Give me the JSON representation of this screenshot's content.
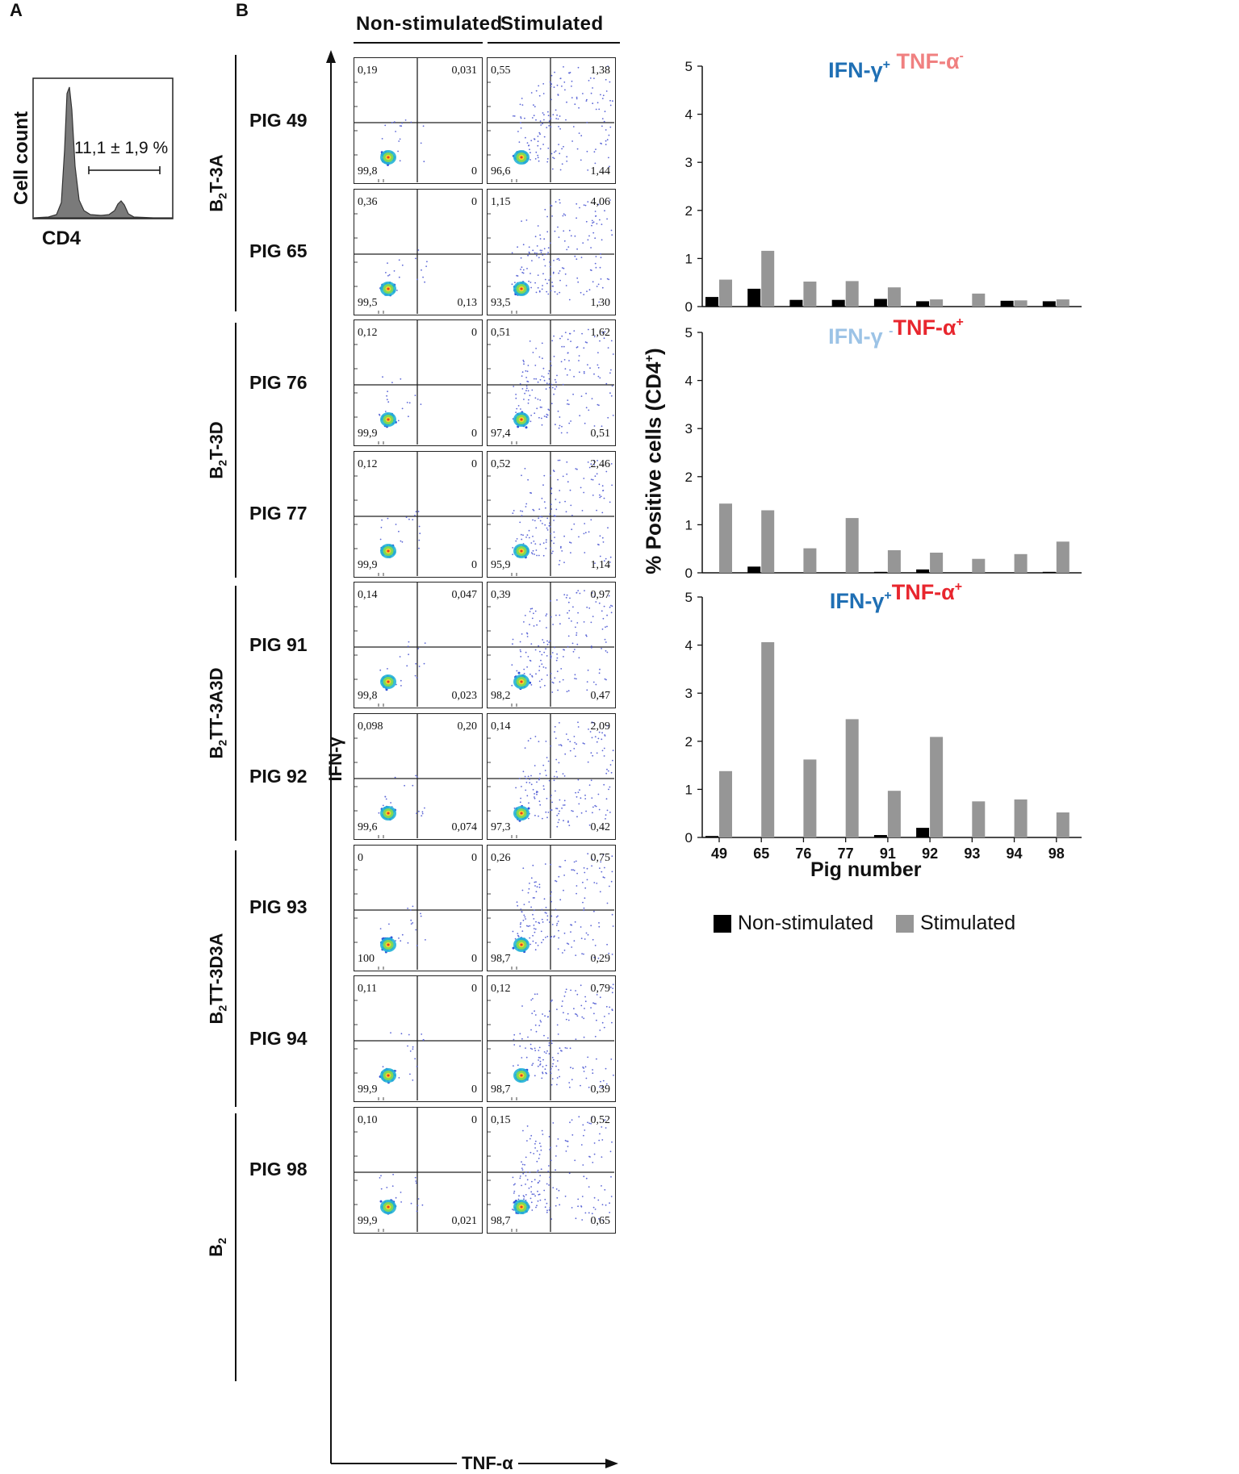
{
  "panel_a": {
    "letter": "A",
    "ylabel": "Cell count",
    "xlabel": "CD4",
    "gate_label": "11,1 ± 1,9 %"
  },
  "panel_b": {
    "letter": "B",
    "col_nonstim": "Non-stimulated",
    "col_stim": "Stimulated",
    "axis_y": "IFN-γ",
    "axis_x": "TNF-α",
    "groups": [
      {
        "pre": "B",
        "sub": "2",
        "post": "T-3A"
      },
      {
        "pre": "B",
        "sub": "2",
        "post": "T-3D"
      },
      {
        "pre": "B",
        "sub": "2",
        "post": "TT-3A3D"
      },
      {
        "pre": "B",
        "sub": "2",
        "post": "TT-3D3A"
      },
      {
        "pre": "B",
        "sub": "2",
        "post": ""
      }
    ],
    "pigs": [
      {
        "label": "PIG 49",
        "ns": [
          "0,19",
          "0,031",
          "99,8",
          "0"
        ],
        "st": [
          "0,55",
          "1,38",
          "96,6",
          "1,44"
        ]
      },
      {
        "label": "PIG 65",
        "ns": [
          "0,36",
          "0",
          "99,5",
          "0,13"
        ],
        "st": [
          "1,15",
          "4,06",
          "93,5",
          "1,30"
        ]
      },
      {
        "label": "PIG 76",
        "ns": [
          "0,12",
          "0",
          "99,9",
          "0"
        ],
        "st": [
          "0,51",
          "1,62",
          "97,4",
          "0,51"
        ]
      },
      {
        "label": "PIG 77",
        "ns": [
          "0,12",
          "0",
          "99,9",
          "0"
        ],
        "st": [
          "0,52",
          "2,46",
          "95,9",
          "1,14"
        ]
      },
      {
        "label": "PIG 91",
        "ns": [
          "0,14",
          "0,047",
          "99,8",
          "0,023"
        ],
        "st": [
          "0,39",
          "0,97",
          "98,2",
          "0,47"
        ]
      },
      {
        "label": "PIG 92",
        "ns": [
          "0,098",
          "0,20",
          "99,6",
          "0,074"
        ],
        "st": [
          "0,14",
          "2,09",
          "97,3",
          "0,42"
        ]
      },
      {
        "label": "PIG 93",
        "ns": [
          "0",
          "0",
          "100",
          "0"
        ],
        "st": [
          "0,26",
          "0,75",
          "98,7",
          "0,29"
        ]
      },
      {
        "label": "PIG 94",
        "ns": [
          "0,11",
          "0",
          "99,9",
          "0"
        ],
        "st": [
          "0,12",
          "0,79",
          "98,7",
          "0,39"
        ]
      },
      {
        "label": "PIG 98",
        "ns": [
          "0,10",
          "0",
          "99,9",
          "0,021"
        ],
        "st": [
          "0,15",
          "0,52",
          "98,7",
          "0,65"
        ]
      }
    ]
  },
  "colors": {
    "ifng_pos": "#1f6fb4",
    "ifng_neg": "#9cc3e6",
    "tnfa_pos": "#e8262e",
    "tnfa_neg": "#f08080",
    "nonstim_bar": "#000000",
    "stim_bar": "#969696"
  },
  "chart_data": [
    {
      "type": "bar",
      "title_parts": [
        {
          "text": "IFN-γ",
          "sup": "+",
          "color": "#1f6fb4"
        },
        {
          "text": " TNF-α",
          "sup": "-",
          "color": "#f08080"
        }
      ],
      "categories": [
        "49",
        "65",
        "76",
        "77",
        "91",
        "92",
        "93",
        "94",
        "98"
      ],
      "series": [
        {
          "name": "Non-stimulated",
          "values": [
            0.2,
            0.37,
            0.14,
            0.14,
            0.16,
            0.11,
            0.0,
            0.12,
            0.11
          ]
        },
        {
          "name": "Stimulated",
          "values": [
            0.56,
            1.16,
            0.52,
            0.53,
            0.4,
            0.15,
            0.27,
            0.13,
            0.15
          ]
        }
      ],
      "ylim": [
        0,
        5
      ],
      "yticks": [
        "0",
        "1",
        "2",
        "3",
        "4",
        "5"
      ]
    },
    {
      "type": "bar",
      "title_parts": [
        {
          "text": "IFN-γ ",
          "sup": "-",
          "color": "#9cc3e6"
        },
        {
          "text": "TNF-α",
          "sup": "+",
          "color": "#e8262e"
        }
      ],
      "categories": [
        "49",
        "65",
        "76",
        "77",
        "91",
        "92",
        "93",
        "94",
        "98"
      ],
      "series": [
        {
          "name": "Non-stimulated",
          "values": [
            0.0,
            0.13,
            0.0,
            0.0,
            0.02,
            0.07,
            0.0,
            0.0,
            0.02
          ]
        },
        {
          "name": "Stimulated",
          "values": [
            1.44,
            1.3,
            0.51,
            1.14,
            0.47,
            0.42,
            0.29,
            0.39,
            0.65
          ]
        }
      ],
      "ylim": [
        0,
        5
      ],
      "yticks": [
        "0",
        "1",
        "2",
        "3",
        "4",
        "5"
      ]
    },
    {
      "type": "bar",
      "title_parts": [
        {
          "text": "IFN-γ",
          "sup": "+",
          "color": "#1f6fb4"
        },
        {
          "text": "TNF-α",
          "sup": "+",
          "color": "#e8262e"
        }
      ],
      "categories": [
        "49",
        "65",
        "76",
        "77",
        "91",
        "92",
        "93",
        "94",
        "98"
      ],
      "series": [
        {
          "name": "Non-stimulated",
          "values": [
            0.03,
            0.0,
            0.0,
            0.0,
            0.05,
            0.2,
            0.0,
            0.0,
            0.0
          ]
        },
        {
          "name": "Stimulated",
          "values": [
            1.38,
            4.06,
            1.62,
            2.46,
            0.97,
            2.09,
            0.75,
            0.79,
            0.52
          ]
        }
      ],
      "ylim": [
        0,
        5
      ],
      "yticks": [
        "0",
        "1",
        "2",
        "3",
        "4",
        "5"
      ]
    }
  ],
  "charts_common": {
    "ylabel": "% Positive cells (CD4",
    "ylabel_sup": "+",
    "ylabel_end": ")",
    "xlabel": "Pig number",
    "legend": [
      {
        "label": "Non-stimulated",
        "color": "#000000"
      },
      {
        "label": "Stimulated",
        "color": "#969696"
      }
    ]
  }
}
